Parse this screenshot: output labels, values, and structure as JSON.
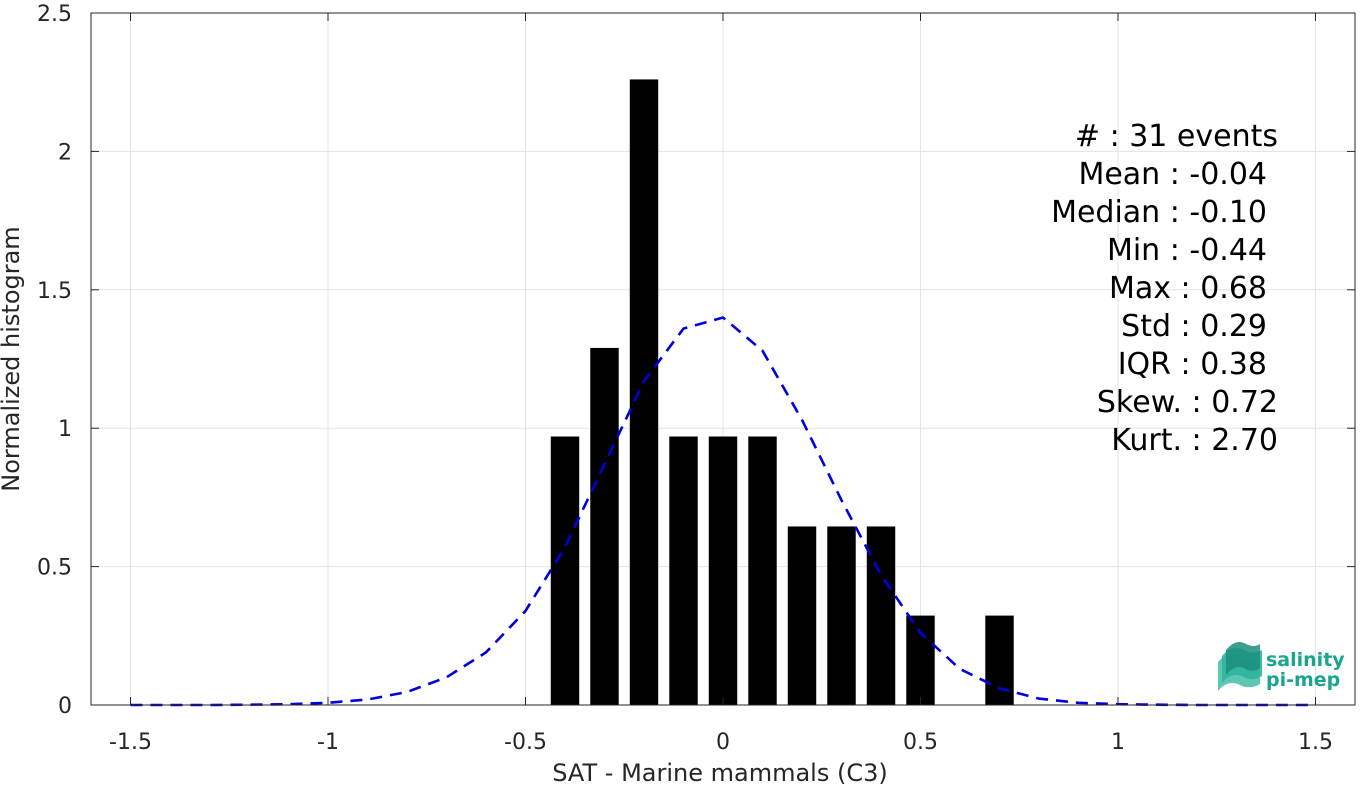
{
  "chart_data": {
    "type": "bar",
    "title": "",
    "xlabel": "SAT - Marine mammals (C3)",
    "ylabel": "Normalized histogram",
    "xlim": [
      -1.6,
      1.6
    ],
    "ylim": [
      0,
      2.5
    ],
    "xticks": [
      -1.5,
      -1,
      -0.5,
      0,
      0.5,
      1,
      1.5
    ],
    "xtick_labels": [
      "-1.5",
      "-1",
      "-0.5",
      "0",
      "0.5",
      "1",
      "1.5"
    ],
    "yticks": [
      0,
      0.5,
      1,
      1.5,
      2,
      2.5
    ],
    "ytick_labels": [
      "0",
      "0.5",
      "1",
      "1.5",
      "2",
      "2.5"
    ],
    "grid": true,
    "bar_width": 0.072,
    "bar_color": "#000000",
    "bars": [
      {
        "x": -0.4,
        "value": 0.97
      },
      {
        "x": -0.3,
        "value": 1.29
      },
      {
        "x": -0.2,
        "value": 2.26
      },
      {
        "x": -0.1,
        "value": 0.97
      },
      {
        "x": 0.0,
        "value": 0.97
      },
      {
        "x": 0.1,
        "value": 0.97
      },
      {
        "x": 0.2,
        "value": 0.645
      },
      {
        "x": 0.3,
        "value": 0.645
      },
      {
        "x": 0.4,
        "value": 0.645
      },
      {
        "x": 0.5,
        "value": 0.323
      },
      {
        "x": 0.7,
        "value": 0.323
      }
    ],
    "fit_curve": {
      "style": "dashed",
      "color": "#0000dd",
      "x": [
        -1.5,
        -1.4,
        -1.3,
        -1.2,
        -1.1,
        -1.0,
        -0.9,
        -0.8,
        -0.7,
        -0.6,
        -0.5,
        -0.4,
        -0.3,
        -0.2,
        -0.1,
        0.0,
        0.1,
        0.2,
        0.3,
        0.4,
        0.5,
        0.6,
        0.7,
        0.8,
        0.9,
        1.0,
        1.1,
        1.2,
        1.3,
        1.4,
        1.5
      ],
      "y": [
        0,
        0,
        0,
        0.001,
        0.003,
        0.008,
        0.02,
        0.047,
        0.1,
        0.19,
        0.34,
        0.57,
        0.87,
        1.17,
        1.36,
        1.4,
        1.28,
        1.03,
        0.74,
        0.47,
        0.26,
        0.13,
        0.06,
        0.023,
        0.008,
        0.003,
        0.001,
        0,
        0,
        0,
        0
      ]
    }
  },
  "stats": [
    {
      "label": "#",
      "sep": "  : ",
      "value": "31 events"
    },
    {
      "label": "Mean",
      "sep": " : ",
      "value": "-0.04"
    },
    {
      "label": "Median",
      "sep": " : ",
      "value": "-0.10"
    },
    {
      "label": "Min",
      "sep": " : ",
      "value": "-0.44"
    },
    {
      "label": "Max",
      "sep": " : ",
      "value": "0.68"
    },
    {
      "label": "Std",
      "sep": " : ",
      "value": "0.29"
    },
    {
      "label": "IQR",
      "sep": " : ",
      "value": "0.38"
    },
    {
      "label": "Skew.",
      "sep": " : ",
      "value": "0.72"
    },
    {
      "label": "Kurt.",
      "sep": " : ",
      "value": "2.70"
    }
  ],
  "logo": {
    "line1": "salinity",
    "line2": "pi-mep",
    "color": "#1aa58f"
  }
}
